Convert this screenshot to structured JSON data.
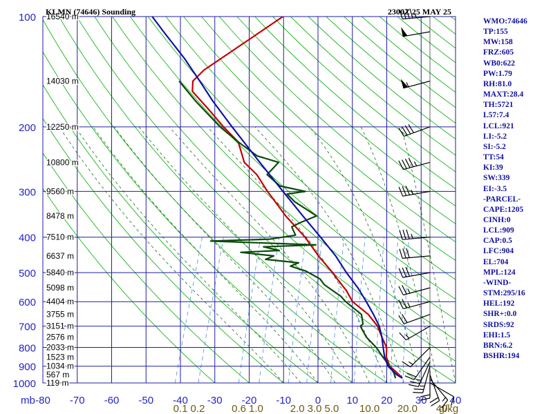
{
  "header": {
    "station": "KLMN (74646) Sounding",
    "valid_time": "2300Z 25 MAY 25"
  },
  "indices": [
    "WMO:74646",
    "TP:155",
    "MW:158",
    "FRZ:605",
    "WB0:622",
    "PW:1.79",
    "RH:81.0",
    "MAXT:28.4",
    "TH:5721",
    "L57:7.4",
    "LCL:921",
    "LI:-5.2",
    "SI:-5.2",
    "TT:54",
    "KI:39",
    "SW:339",
    "EI:-3.5",
    "-PARCEL-",
    "CAPE:1205",
    "CINH:0",
    "LCL:909",
    "CAP:0.5",
    "LFC:904",
    "EL:704",
    "MPL:124",
    "-WIND-",
    "STM:295/16",
    "HEL:192",
    "SHR+:0.0",
    "SRDS:92",
    "EHI:1.5",
    "BRN:6.2",
    "BSHR:194"
  ],
  "colors": {
    "grid": "#1e1ea0",
    "axis_text": "#2323c8",
    "dry_adiabat": "#18b418",
    "moist_adiabat": "#1a6a1a",
    "mixing_ratio": "#4a8ee0",
    "temperature": "#c00000",
    "dewpoint": "#0a4a0a",
    "parcel": "#1010a8",
    "mixing_label": "#6a5a10",
    "wind": "#000000",
    "index_text": "#1010a0"
  },
  "chart_data": {
    "type": "line",
    "title": "KLMN (74646) Sounding",
    "subtitle": "2300Z 25 MAY 25",
    "xlabel": "",
    "ylabel": "mb",
    "scale": "skew-T log-p",
    "x_unit": "°C",
    "y_unit": "mb",
    "xlim": [
      -80,
      40
    ],
    "ylim": [
      1000,
      100
    ],
    "pressure_ticks": [
      100,
      200,
      300,
      400,
      500,
      600,
      700,
      800,
      900,
      1000
    ],
    "pressure_labels": [
      "100",
      "200",
      "300",
      "400",
      "500",
      "600",
      "700",
      "800",
      "900",
      "1000"
    ],
    "temperature_ticks": [
      -80,
      -70,
      -60,
      -50,
      -40,
      -30,
      -20,
      -10,
      0,
      10,
      20,
      30,
      40
    ],
    "temperature_labels": [
      "-80",
      "-70",
      "-60",
      "-50",
      "-40",
      "-30",
      "-20",
      "-10",
      "0",
      "10",
      "20",
      "30",
      "40"
    ],
    "height_labels": [
      {
        "p": 100,
        "text": "16540 m"
      },
      {
        "p": 150,
        "text": "14030 m"
      },
      {
        "p": 200,
        "text": "12250 m"
      },
      {
        "p": 250,
        "text": "10800 m"
      },
      {
        "p": 300,
        "text": "9560 m"
      },
      {
        "p": 350,
        "text": "8478 m"
      },
      {
        "p": 400,
        "text": "7510 m"
      },
      {
        "p": 450,
        "text": "6637 m"
      },
      {
        "p": 500,
        "text": "5840 m"
      },
      {
        "p": 550,
        "text": "5098 m"
      },
      {
        "p": 600,
        "text": "4404 m"
      },
      {
        "p": 650,
        "text": "3755 m"
      },
      {
        "p": 700,
        "text": "3151 m"
      },
      {
        "p": 750,
        "text": "2576 m"
      },
      {
        "p": 800,
        "text": "2033 m"
      },
      {
        "p": 850,
        "text": "1523 m"
      },
      {
        "p": 900,
        "text": "1034 m"
      },
      {
        "p": 950,
        "text": "567 m"
      },
      {
        "p": 1000,
        "text": "119 m"
      }
    ],
    "mixing_ratio_labels": [
      "0.1",
      "0.2",
      "0.6",
      "1.0",
      "2.0",
      "3.0",
      "5.0",
      "10.0",
      "20.0",
      "40",
      "g/kg"
    ],
    "mixing_ratio_label_temps": [
      -40,
      -35,
      -23,
      -18,
      -6,
      -1,
      4,
      15,
      26,
      36,
      38
    ],
    "series": [
      {
        "key": "temperature",
        "p": [
          970,
          940,
          900,
          850,
          800,
          750,
          700,
          650,
          600,
          560,
          520,
          500,
          450,
          400,
          350,
          300,
          270,
          250,
          220,
          200,
          180,
          160,
          150,
          140,
          100
        ],
        "t": [
          24,
          22,
          19,
          17,
          16,
          13.5,
          11,
          7,
          1,
          -2,
          -6,
          -8,
          -14,
          -20,
          -28,
          -36,
          -41,
          -46,
          -50,
          -56,
          -62,
          -69,
          -70,
          -68,
          -51
        ]
      },
      {
        "key": "dewpoint",
        "p": [
          970,
          940,
          900,
          850,
          800,
          750,
          700,
          690,
          650,
          600,
          580,
          540,
          520,
          505,
          495,
          480,
          470,
          460,
          450,
          440,
          435,
          425,
          420,
          410,
          405,
          395,
          385,
          375,
          365,
          350,
          320,
          305,
          300,
          290,
          270,
          250,
          240,
          220,
          200,
          170,
          150
        ],
        "t": [
          22,
          21,
          19,
          16,
          13,
          9,
          6,
          6.5,
          5,
          -1,
          -3,
          -9,
          -11,
          -14,
          -16,
          -21,
          -19,
          -29,
          -27,
          -37,
          -26,
          -31,
          -16,
          -47,
          -30,
          -23,
          -24,
          -25,
          -23,
          -19,
          -27,
          -30,
          -25,
          -33,
          -38,
          -36,
          -43,
          -50,
          -57,
          -67,
          -74
        ]
      },
      {
        "key": "parcel",
        "p": [
          970,
          950,
          900,
          850,
          800,
          750,
          700,
          650,
          600,
          550,
          500,
          450,
          400,
          350,
          300,
          250,
          200,
          170,
          150,
          130,
          110,
          100
        ],
        "t": [
          24,
          22,
          18.5,
          16.5,
          15,
          13.5,
          11.5,
          8.5,
          5,
          1,
          -4,
          -9,
          -15.5,
          -23,
          -31.5,
          -41.5,
          -53.5,
          -62,
          -68,
          -75,
          -84,
          -89
        ]
      }
    ],
    "wind_barbs": [
      {
        "p": 1000,
        "dir": 120,
        "spd": 10
      },
      {
        "p": 975,
        "dir": 140,
        "spd": 15
      },
      {
        "p": 950,
        "dir": 160,
        "spd": 20
      },
      {
        "p": 925,
        "dir": 180,
        "spd": 20
      },
      {
        "p": 900,
        "dir": 195,
        "spd": 25
      },
      {
        "p": 875,
        "dir": 205,
        "spd": 25
      },
      {
        "p": 850,
        "dir": 215,
        "spd": 20
      },
      {
        "p": 800,
        "dir": 225,
        "spd": 15
      },
      {
        "p": 700,
        "dir": 240,
        "spd": 15
      },
      {
        "p": 650,
        "dir": 250,
        "spd": 20
      },
      {
        "p": 600,
        "dir": 255,
        "spd": 25
      },
      {
        "p": 550,
        "dir": 255,
        "spd": 25
      },
      {
        "p": 500,
        "dir": 260,
        "spd": 30
      },
      {
        "p": 450,
        "dir": 265,
        "spd": 30
      },
      {
        "p": 400,
        "dir": 265,
        "spd": 35
      },
      {
        "p": 300,
        "dir": 260,
        "spd": 35
      },
      {
        "p": 250,
        "dir": 255,
        "spd": 45
      },
      {
        "p": 200,
        "dir": 250,
        "spd": 40
      },
      {
        "p": 150,
        "dir": 255,
        "spd": 55
      },
      {
        "p": 110,
        "dir": 260,
        "spd": 50
      },
      {
        "p": 100,
        "dir": 265,
        "spd": 45
      }
    ],
    "grid": true,
    "legend": "none"
  }
}
